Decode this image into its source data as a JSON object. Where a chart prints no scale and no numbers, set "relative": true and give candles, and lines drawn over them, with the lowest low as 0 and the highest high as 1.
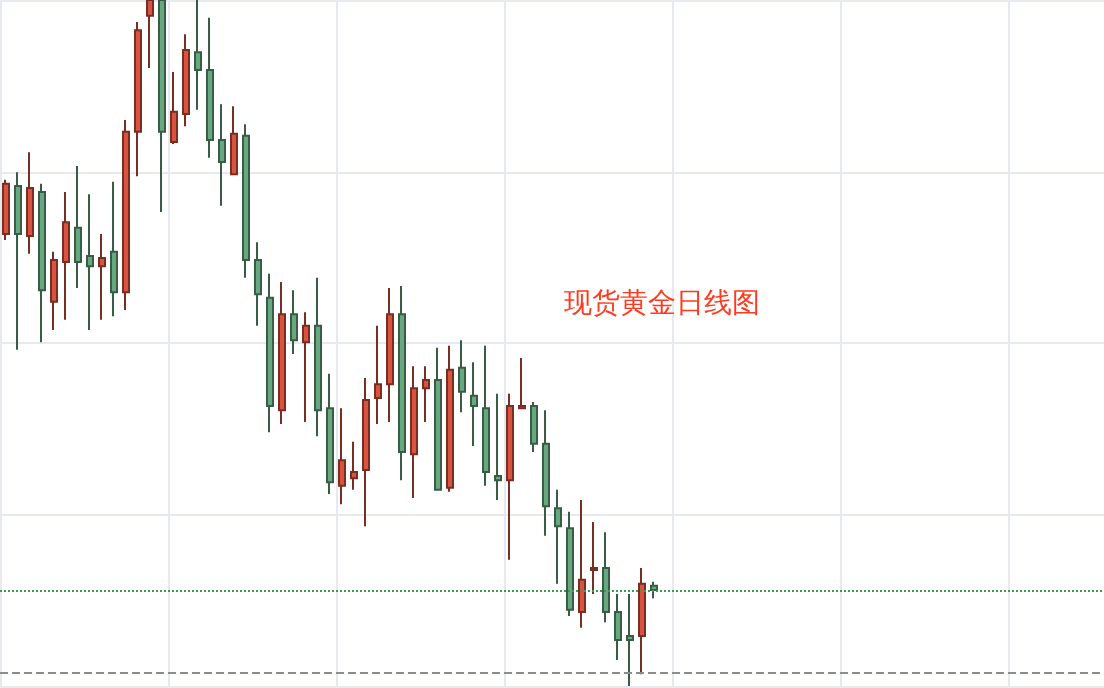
{
  "chart_data": {
    "type": "candlestick",
    "title": "现货黄金日线图",
    "relative": true,
    "grid": true,
    "categories": [
      null,
      null,
      null,
      null,
      null,
      null,
      null,
      null,
      null,
      null,
      null,
      null,
      null,
      null,
      null,
      null,
      null,
      null,
      null,
      null,
      null,
      null,
      null,
      null,
      null,
      null,
      null,
      null,
      null,
      null,
      null,
      null,
      null,
      null,
      null,
      null,
      null,
      null,
      null,
      null,
      null,
      null,
      null,
      null,
      null,
      null,
      null,
      null,
      null,
      null,
      null,
      null,
      null,
      null,
      null
    ],
    "ohlc": [
      [
        0.659,
        0.738,
        0.65,
        0.732
      ],
      [
        0.729,
        0.749,
        0.49,
        0.659
      ],
      [
        0.656,
        0.778,
        0.63,
        0.726
      ],
      [
        0.72,
        0.732,
        0.501,
        0.577
      ],
      [
        0.56,
        0.633,
        0.519,
        0.621
      ],
      [
        0.618,
        0.72,
        0.534,
        0.676
      ],
      [
        0.668,
        0.758,
        0.58,
        0.618
      ],
      [
        0.627,
        0.717,
        0.519,
        0.612
      ],
      [
        0.612,
        0.659,
        0.534,
        0.624
      ],
      [
        0.633,
        0.735,
        0.539,
        0.574
      ],
      [
        0.574,
        0.825,
        0.548,
        0.808
      ],
      [
        0.808,
        0.968,
        0.743,
        0.956
      ],
      [
        0.977,
        1,
        0.901,
        1
      ],
      [
        1,
        1,
        0.691,
        0.808
      ],
      [
        0.793,
        0.895,
        0.79,
        0.837
      ],
      [
        0.834,
        0.95,
        0.816,
        0.927
      ],
      [
        0.924,
        1,
        0.84,
        0.898
      ],
      [
        0.898,
        0.974,
        0.77,
        0.796
      ],
      [
        0.796,
        0.848,
        0.7,
        0.764
      ],
      [
        0.746,
        0.845,
        0.746,
        0.805
      ],
      [
        0.802,
        0.819,
        0.595,
        0.621
      ],
      [
        0.621,
        0.647,
        0.525,
        0.571
      ],
      [
        0.566,
        0.601,
        0.37,
        0.408
      ],
      [
        0.402,
        0.589,
        0.382,
        0.542
      ],
      [
        0.542,
        0.577,
        0.484,
        0.504
      ],
      [
        0.501,
        0.545,
        0.385,
        0.525
      ],
      [
        0.525,
        0.595,
        0.364,
        0.402
      ],
      [
        0.405,
        0.455,
        0.28,
        0.297
      ],
      [
        0.292,
        0.405,
        0.265,
        0.329
      ],
      [
        0.303,
        0.356,
        0.286,
        0.312
      ],
      [
        0.315,
        0.449,
        0.233,
        0.417
      ],
      [
        0.42,
        0.525,
        0.382,
        0.44
      ],
      [
        0.44,
        0.58,
        0.385,
        0.542
      ],
      [
        0.542,
        0.583,
        0.3,
        0.341
      ],
      [
        0.338,
        0.466,
        0.274,
        0.434
      ],
      [
        0.434,
        0.466,
        0.385,
        0.446
      ],
      [
        0.446,
        0.493,
        0.286,
        0.286
      ],
      [
        0.289,
        0.496,
        0.283,
        0.461
      ],
      [
        0.464,
        0.504,
        0.399,
        0.429
      ],
      [
        0.423,
        0.472,
        0.35,
        0.408
      ],
      [
        0.405,
        0.496,
        0.292,
        0.312
      ],
      [
        0.306,
        0.426,
        0.271,
        0.3
      ],
      [
        0.3,
        0.426,
        0.184,
        0.408
      ],
      [
        0.405,
        0.478,
        0.405,
        0.408
      ],
      [
        0.408,
        0.414,
        0.341,
        0.353
      ],
      [
        0.353,
        0.402,
        0.219,
        0.262
      ],
      [
        0.259,
        0.286,
        0.149,
        0.233
      ],
      [
        0.23,
        0.254,
        0.102,
        0.111
      ],
      [
        0.108,
        0.271,
        0.085,
        0.155
      ],
      [
        0.169,
        0.239,
        0.134,
        0.172
      ],
      [
        0.172,
        0.224,
        0.093,
        0.108
      ],
      [
        0.108,
        0.134,
        0.038,
        0.067
      ],
      [
        0.073,
        0.134,
        0,
        0.067
      ],
      [
        0.073,
        0.172,
        0.017,
        0.149
      ],
      [
        0.146,
        0.152,
        0.128,
        0.14
      ]
    ],
    "colors": [
      "#d9533f",
      "#68a880",
      "#d9533f",
      "#68a880",
      "#d9533f",
      "#d9533f",
      "#68a880",
      "#68a880",
      "#d9533f",
      "#68a880",
      "#d9533f",
      "#d9533f",
      "#d9533f",
      "#68a880",
      "#d9533f",
      "#d9533f",
      "#68a880",
      "#68a880",
      "#68a880",
      "#d9533f",
      "#68a880",
      "#68a880",
      "#68a880",
      "#d9533f",
      "#68a880",
      "#d9533f",
      "#68a880",
      "#68a880",
      "#d9533f",
      "#d9533f",
      "#d9533f",
      "#d9533f",
      "#d9533f",
      "#68a880",
      "#d9533f",
      "#d9533f",
      "#68a880",
      "#d9533f",
      "#68a880",
      "#68a880",
      "#68a880",
      "#68a880",
      "#d9533f",
      "#d9533f",
      "#68a880",
      "#68a880",
      "#68a880",
      "#68a880",
      "#d9533f",
      "#d9533f",
      "#68a880",
      "#68a880",
      "#68a880",
      "#d9533f",
      "#68a880"
    ],
    "ref_lines": [
      {
        "axis": "y",
        "value": 0.14,
        "color": "#3a9a55",
        "line_style": "dotted"
      },
      {
        "axis": "y",
        "value": 0.023,
        "color": "#8c8c8c",
        "line_style": "dashed"
      }
    ]
  }
}
